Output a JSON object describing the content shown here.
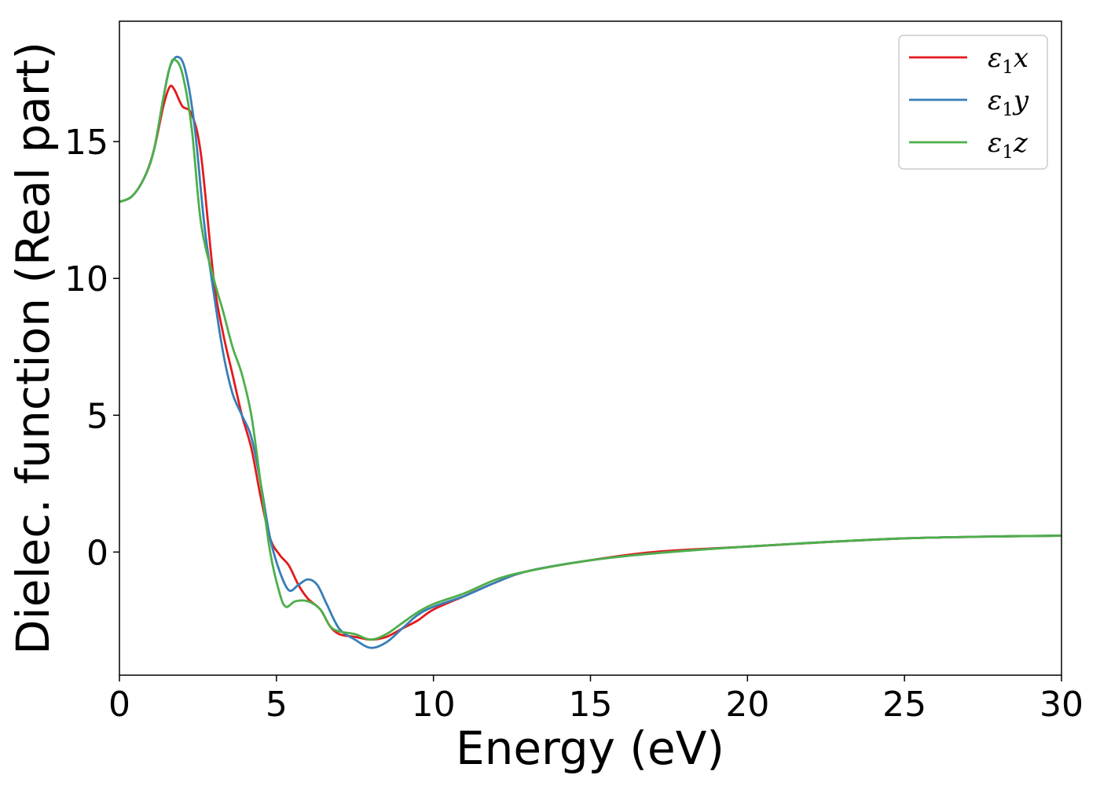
{
  "chart_data": {
    "type": "line",
    "title": "",
    "xlabel": "Energy (eV)",
    "ylabel": "Dielec. function (Real part)",
    "xlim": [
      0,
      30
    ],
    "ylim": [
      -4.5,
      19.4
    ],
    "xticks": [
      0,
      5,
      10,
      15,
      20,
      25,
      30
    ],
    "yticks": [
      0,
      5,
      10,
      15
    ],
    "grid": false,
    "legend_position": "top-right",
    "series": [
      {
        "name": "ε₁x",
        "legend_base": "ε",
        "legend_sub": "1",
        "legend_suffix": "x",
        "color": "#e41a1c",
        "points": [
          [
            0,
            12.8
          ],
          [
            0.4,
            13.0
          ],
          [
            0.8,
            13.7
          ],
          [
            1.1,
            14.7
          ],
          [
            1.4,
            16.3
          ],
          [
            1.6,
            17.0
          ],
          [
            1.75,
            16.9
          ],
          [
            2.0,
            16.3
          ],
          [
            2.3,
            16.0
          ],
          [
            2.6,
            14.5
          ],
          [
            3.0,
            10.0
          ],
          [
            3.3,
            8.0
          ],
          [
            3.6,
            6.5
          ],
          [
            3.9,
            5.0
          ],
          [
            4.2,
            3.8
          ],
          [
            4.5,
            2.0
          ],
          [
            4.8,
            0.5
          ],
          [
            5.1,
            -0.1
          ],
          [
            5.4,
            -0.5
          ],
          [
            5.7,
            -1.2
          ],
          [
            6.0,
            -1.7
          ],
          [
            6.4,
            -2.1
          ],
          [
            6.7,
            -2.7
          ],
          [
            7.0,
            -3.0
          ],
          [
            7.5,
            -3.1
          ],
          [
            8.0,
            -3.2
          ],
          [
            8.5,
            -3.1
          ],
          [
            9.0,
            -2.8
          ],
          [
            9.5,
            -2.5
          ],
          [
            10.0,
            -2.1
          ],
          [
            11.0,
            -1.6
          ],
          [
            12.0,
            -1.1
          ],
          [
            13.0,
            -0.7
          ],
          [
            15.0,
            -0.3
          ],
          [
            17.0,
            0.0
          ],
          [
            20.0,
            0.2
          ],
          [
            25.0,
            0.5
          ],
          [
            30.0,
            0.6
          ]
        ]
      },
      {
        "name": "ε₁y",
        "legend_base": "ε",
        "legend_sub": "1",
        "legend_suffix": "y",
        "color": "#377eb8",
        "points": [
          [
            0,
            12.8
          ],
          [
            0.4,
            13.0
          ],
          [
            0.8,
            13.7
          ],
          [
            1.1,
            14.7
          ],
          [
            1.4,
            16.6
          ],
          [
            1.6,
            17.7
          ],
          [
            1.85,
            18.1
          ],
          [
            2.1,
            17.6
          ],
          [
            2.4,
            15.5
          ],
          [
            2.7,
            12.0
          ],
          [
            3.0,
            9.5
          ],
          [
            3.3,
            7.3
          ],
          [
            3.6,
            5.8
          ],
          [
            3.9,
            5.0
          ],
          [
            4.2,
            4.2
          ],
          [
            4.5,
            2.5
          ],
          [
            4.8,
            0.5
          ],
          [
            5.1,
            -0.7
          ],
          [
            5.4,
            -1.4
          ],
          [
            5.7,
            -1.2
          ],
          [
            6.0,
            -1.0
          ],
          [
            6.3,
            -1.2
          ],
          [
            6.6,
            -1.9
          ],
          [
            7.0,
            -2.8
          ],
          [
            7.5,
            -3.2
          ],
          [
            8.0,
            -3.5
          ],
          [
            8.5,
            -3.3
          ],
          [
            9.0,
            -2.8
          ],
          [
            9.5,
            -2.3
          ],
          [
            10.0,
            -2.0
          ],
          [
            11.0,
            -1.6
          ],
          [
            12.0,
            -1.1
          ],
          [
            13.0,
            -0.7
          ],
          [
            15.0,
            -0.3
          ],
          [
            17.0,
            -0.05
          ],
          [
            20.0,
            0.2
          ],
          [
            25.0,
            0.5
          ],
          [
            30.0,
            0.6
          ]
        ]
      },
      {
        "name": "ε₁z",
        "legend_base": "ε",
        "legend_sub": "1",
        "legend_suffix": "z",
        "color": "#4daf4a",
        "points": [
          [
            0,
            12.8
          ],
          [
            0.4,
            13.0
          ],
          [
            0.8,
            13.7
          ],
          [
            1.1,
            14.7
          ],
          [
            1.4,
            16.6
          ],
          [
            1.6,
            17.7
          ],
          [
            1.75,
            18.0
          ],
          [
            2.0,
            17.5
          ],
          [
            2.3,
            15.5
          ],
          [
            2.6,
            12.0
          ],
          [
            3.0,
            10.0
          ],
          [
            3.3,
            8.8
          ],
          [
            3.6,
            7.5
          ],
          [
            3.9,
            6.5
          ],
          [
            4.2,
            5.0
          ],
          [
            4.5,
            2.5
          ],
          [
            4.8,
            0.0
          ],
          [
            5.1,
            -1.5
          ],
          [
            5.3,
            -2.0
          ],
          [
            5.6,
            -1.8
          ],
          [
            6.0,
            -1.8
          ],
          [
            6.4,
            -2.1
          ],
          [
            6.7,
            -2.7
          ],
          [
            7.0,
            -2.9
          ],
          [
            7.5,
            -3.0
          ],
          [
            8.0,
            -3.2
          ],
          [
            8.5,
            -3.0
          ],
          [
            9.0,
            -2.6
          ],
          [
            9.5,
            -2.2
          ],
          [
            10.0,
            -1.9
          ],
          [
            11.0,
            -1.5
          ],
          [
            12.0,
            -1.0
          ],
          [
            13.0,
            -0.7
          ],
          [
            15.0,
            -0.3
          ],
          [
            17.0,
            -0.05
          ],
          [
            20.0,
            0.2
          ],
          [
            25.0,
            0.5
          ],
          [
            30.0,
            0.6
          ]
        ]
      }
    ]
  }
}
